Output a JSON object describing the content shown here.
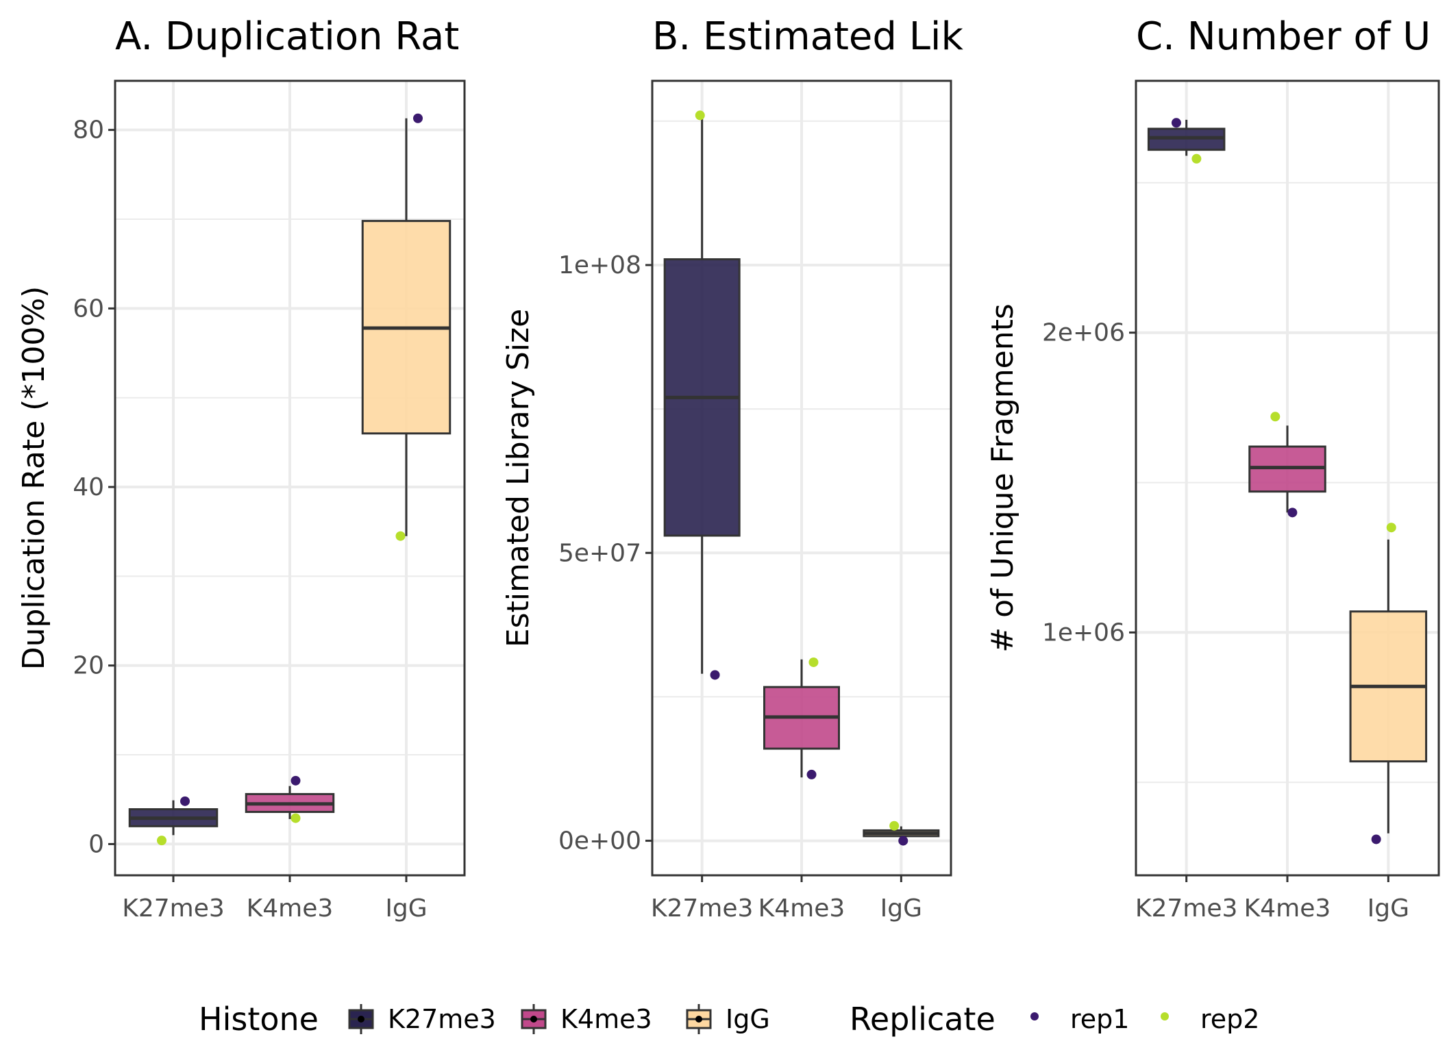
{
  "chart_data": [
    {
      "type": "box",
      "title": "A. Duplication Rat",
      "ylabel": "Duplication Rate (*100%)",
      "categories": [
        "K27me3",
        "K4me3",
        "IgG"
      ],
      "ylim": [
        -3.5,
        85.5
      ],
      "yticks": [
        0,
        20,
        40,
        60,
        80
      ],
      "ytick_labels": [
        "0",
        "20",
        "40",
        "60",
        "80"
      ],
      "grid": true,
      "boxes": [
        {
          "category": "K27me3",
          "q1": 2.0,
          "median": 2.9,
          "q3": 3.9,
          "whisker_low": 1.0,
          "whisker_high": 4.9
        },
        {
          "category": "K4me3",
          "q1": 3.6,
          "median": 4.5,
          "q3": 5.6,
          "whisker_low": 2.8,
          "whisker_high": 6.5
        },
        {
          "category": "IgG",
          "q1": 46.0,
          "median": 57.8,
          "q3": 69.8,
          "whisker_low": 34.5,
          "whisker_high": 81.3
        }
      ],
      "points": [
        {
          "category": "K27me3",
          "replicate": "rep1",
          "y": 4.8,
          "jitter": 0.1
        },
        {
          "category": "K27me3",
          "replicate": "rep2",
          "y": 0.4,
          "jitter": -0.1
        },
        {
          "category": "K4me3",
          "replicate": "rep1",
          "y": 7.1,
          "jitter": 0.05
        },
        {
          "category": "K4me3",
          "replicate": "rep2",
          "y": 2.9,
          "jitter": 0.05
        },
        {
          "category": "IgG",
          "replicate": "rep1",
          "y": 81.3,
          "jitter": 0.1
        },
        {
          "category": "IgG",
          "replicate": "rep2",
          "y": 34.5,
          "jitter": -0.05
        }
      ]
    },
    {
      "type": "box",
      "title": "B. Estimated Lik",
      "ylabel": "Estimated Library Size",
      "categories": [
        "K27me3",
        "K4me3",
        "IgG"
      ],
      "ylim": [
        -6000000,
        132000000
      ],
      "yticks": [
        0,
        50000000,
        100000000
      ],
      "ytick_labels": [
        "0e+00",
        "5e+07",
        "1e+08"
      ],
      "grid": true,
      "boxes": [
        {
          "category": "K27me3",
          "q1": 53000000,
          "median": 77000000,
          "q3": 101000000,
          "whisker_low": 29000000,
          "whisker_high": 126000000
        },
        {
          "category": "K4me3",
          "q1": 16000000,
          "median": 21500000,
          "q3": 26700000,
          "whisker_low": 11000000,
          "whisker_high": 31500000
        },
        {
          "category": "IgG",
          "q1": 800000,
          "median": 1300000,
          "q3": 1800000,
          "whisker_low": 200000,
          "whisker_high": 2500000
        }
      ],
      "points": [
        {
          "category": "K27me3",
          "replicate": "rep1",
          "y": 28800000,
          "jitter": 0.13
        },
        {
          "category": "K27me3",
          "replicate": "rep2",
          "y": 126000000,
          "jitter": -0.02
        },
        {
          "category": "K4me3",
          "replicate": "rep1",
          "y": 11500000,
          "jitter": 0.1
        },
        {
          "category": "K4me3",
          "replicate": "rep2",
          "y": 31000000,
          "jitter": 0.12
        },
        {
          "category": "IgG",
          "replicate": "rep1",
          "y": 0,
          "jitter": 0.02
        },
        {
          "category": "IgG",
          "replicate": "rep2",
          "y": 2600000,
          "jitter": -0.07
        }
      ]
    },
    {
      "type": "box",
      "title": "C. Number of U",
      "ylabel": "# of Unique Fragments",
      "categories": [
        "K27me3",
        "K4me3",
        "IgG"
      ],
      "ylim": [
        190000,
        2840000
      ],
      "yticks": [
        1000000,
        2000000
      ],
      "ytick_labels": [
        "1e+06",
        "2e+06"
      ],
      "grid": true,
      "boxes": [
        {
          "category": "K27me3",
          "q1": 2610000,
          "median": 2650000,
          "q3": 2680000,
          "whisker_low": 2590000,
          "whisker_high": 2710000
        },
        {
          "category": "K4me3",
          "q1": 1470000,
          "median": 1550000,
          "q3": 1620000,
          "whisker_low": 1400000,
          "whisker_high": 1690000
        },
        {
          "category": "IgG",
          "q1": 570000,
          "median": 820000,
          "q3": 1070000,
          "whisker_low": 330000,
          "whisker_high": 1310000
        }
      ],
      "points": [
        {
          "category": "K27me3",
          "replicate": "rep1",
          "y": 2700000,
          "jitter": -0.1
        },
        {
          "category": "K27me3",
          "replicate": "rep2",
          "y": 2580000,
          "jitter": 0.1
        },
        {
          "category": "K4me3",
          "replicate": "rep1",
          "y": 1400000,
          "jitter": 0.05
        },
        {
          "category": "K4me3",
          "replicate": "rep2",
          "y": 1720000,
          "jitter": -0.12
        },
        {
          "category": "IgG",
          "replicate": "rep1",
          "y": 310000,
          "jitter": -0.12
        },
        {
          "category": "IgG",
          "replicate": "rep2",
          "y": 1350000,
          "jitter": 0.03
        }
      ]
    }
  ],
  "legend": {
    "position": "bottom",
    "histone_title": "Histone",
    "histone": [
      {
        "label": "K27me3",
        "color": "#2a2450"
      },
      {
        "label": "K4me3",
        "color": "#c1498b"
      },
      {
        "label": "IgG",
        "color": "#fed8a1"
      }
    ],
    "replicate_title": "Replicate",
    "replicate": [
      {
        "label": "rep1",
        "color": "#3b1a6e"
      },
      {
        "label": "rep2",
        "color": "#b6de2b"
      }
    ]
  }
}
